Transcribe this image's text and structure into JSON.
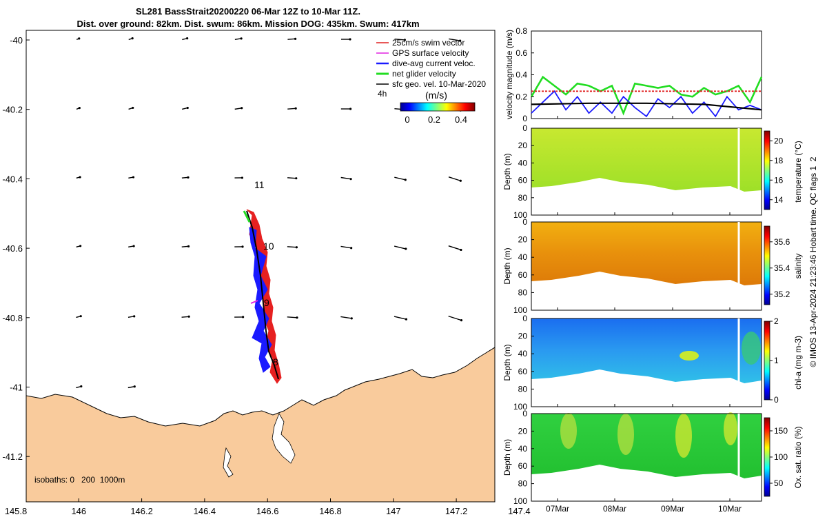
{
  "title": {
    "line1": "SL281 BassStrait20200220 06-Mar 12Z to 10-Mar 11Z.",
    "line2": "Dist. over ground: 82km. Dist. swum: 86km. Mission DOG: 435km. Swum: 417km"
  },
  "map": {
    "legend": [
      {
        "label": "25cm/s swim vector",
        "color": "#e02020"
      },
      {
        "label": "GPS surface velocity",
        "color": "#e020e0"
      },
      {
        "label": "dive-avg current veloc.",
        "color": "#1a1aff"
      },
      {
        "label": "net glider velocity",
        "color": "#22dd22"
      },
      {
        "label": "sfc geo. vel. 10-Mar-2020",
        "color": "#000000"
      }
    ],
    "time_note": "4h",
    "colorbar_unit": "(m/s)",
    "colorbar_ticks": [
      "0",
      "0.2",
      "0.4"
    ],
    "day_markers": [
      "11",
      "10",
      "9",
      "8"
    ],
    "isobaths": "isobaths: 0   200  1000m",
    "land_color": "#f9cb9c",
    "x_ticks": [
      "145.8",
      "146",
      "146.2",
      "146.4",
      "146.6",
      "146.8",
      "147",
      "147.2",
      "147.4"
    ],
    "y_ticks": [
      "-40",
      "-40.2",
      "-40.4",
      "-40.6",
      "-40.8",
      "-41",
      "-41.2"
    ]
  },
  "chart_data": [
    {
      "type": "line",
      "ylabel": "velocity magnitude (m/s)",
      "ylim": [
        0,
        0.8
      ],
      "y_ticks": [
        "0",
        "0.2",
        "0.4",
        "0.6",
        "0.8"
      ],
      "series": [
        {
          "name": "net glider velocity",
          "color": "#22dd22",
          "x": [
            0,
            0.05,
            0.1,
            0.15,
            0.2,
            0.25,
            0.3,
            0.35,
            0.4,
            0.45,
            0.5,
            0.55,
            0.6,
            0.65,
            0.7,
            0.75,
            0.8,
            0.85,
            0.9,
            0.95,
            1.0
          ],
          "values": [
            0.2,
            0.38,
            0.3,
            0.22,
            0.32,
            0.3,
            0.25,
            0.3,
            0.05,
            0.32,
            0.3,
            0.28,
            0.3,
            0.22,
            0.2,
            0.28,
            0.22,
            0.25,
            0.3,
            0.15,
            0.38
          ]
        },
        {
          "name": "dive-avg current veloc.",
          "color": "#1a1aff",
          "x": [
            0,
            0.05,
            0.1,
            0.15,
            0.2,
            0.25,
            0.3,
            0.35,
            0.4,
            0.45,
            0.5,
            0.55,
            0.6,
            0.65,
            0.7,
            0.75,
            0.8,
            0.85,
            0.9,
            0.95,
            1.0
          ],
          "values": [
            0.05,
            0.15,
            0.25,
            0.08,
            0.2,
            0.05,
            0.15,
            0.05,
            0.2,
            0.1,
            0.02,
            0.18,
            0.1,
            0.2,
            0.05,
            0.15,
            0.02,
            0.2,
            0.08,
            0.12,
            0.08
          ]
        },
        {
          "name": "sfc geo. vel. 10-Mar-2020",
          "color": "#000000",
          "x": [
            0,
            0.25,
            0.5,
            0.75,
            1.0
          ],
          "values": [
            0.13,
            0.14,
            0.14,
            0.13,
            0.08
          ]
        },
        {
          "name": "25cm/s swim vector",
          "color": "#e02020",
          "x": [
            0,
            1.0
          ],
          "values": [
            0.25,
            0.25
          ]
        }
      ]
    },
    {
      "type": "heatmap",
      "ylabel": "Depth (m)",
      "y_ticks": [
        "0",
        "20",
        "40",
        "60",
        "80",
        "100"
      ],
      "clabel": "temperature (°C)",
      "c_ticks": [
        "14",
        "16",
        "18",
        "20"
      ],
      "crange": [
        13,
        21
      ]
    },
    {
      "type": "heatmap",
      "ylabel": "Depth (m)",
      "y_ticks": [
        "0",
        "20",
        "40",
        "60",
        "80",
        "100"
      ],
      "clabel": "salinity",
      "c_ticks": [
        "35.2",
        "35.4",
        "35.6"
      ],
      "crange": [
        35.12,
        35.72
      ]
    },
    {
      "type": "heatmap",
      "ylabel": "Depth (m)",
      "y_ticks": [
        "0",
        "20",
        "40",
        "60",
        "80",
        "100"
      ],
      "clabel": "chl-a (mg m-3)",
      "c_ticks": [
        "0",
        "1",
        "2"
      ],
      "crange": [
        0,
        2
      ]
    },
    {
      "type": "heatmap",
      "ylabel": "Depth (m)",
      "y_ticks": [
        "0",
        "20",
        "40",
        "60",
        "80",
        "100"
      ],
      "clabel": "Ox. sat. ratio (%)",
      "c_ticks": [
        "50",
        "100",
        "150"
      ],
      "crange": [
        25,
        175
      ],
      "x_ticks": [
        "07Mar",
        "08Mar",
        "09Mar",
        "10Mar"
      ]
    }
  ],
  "footer": "© IMOS 13-Apr-2024 21:23:46 Hobart time. QC flags 1  2"
}
